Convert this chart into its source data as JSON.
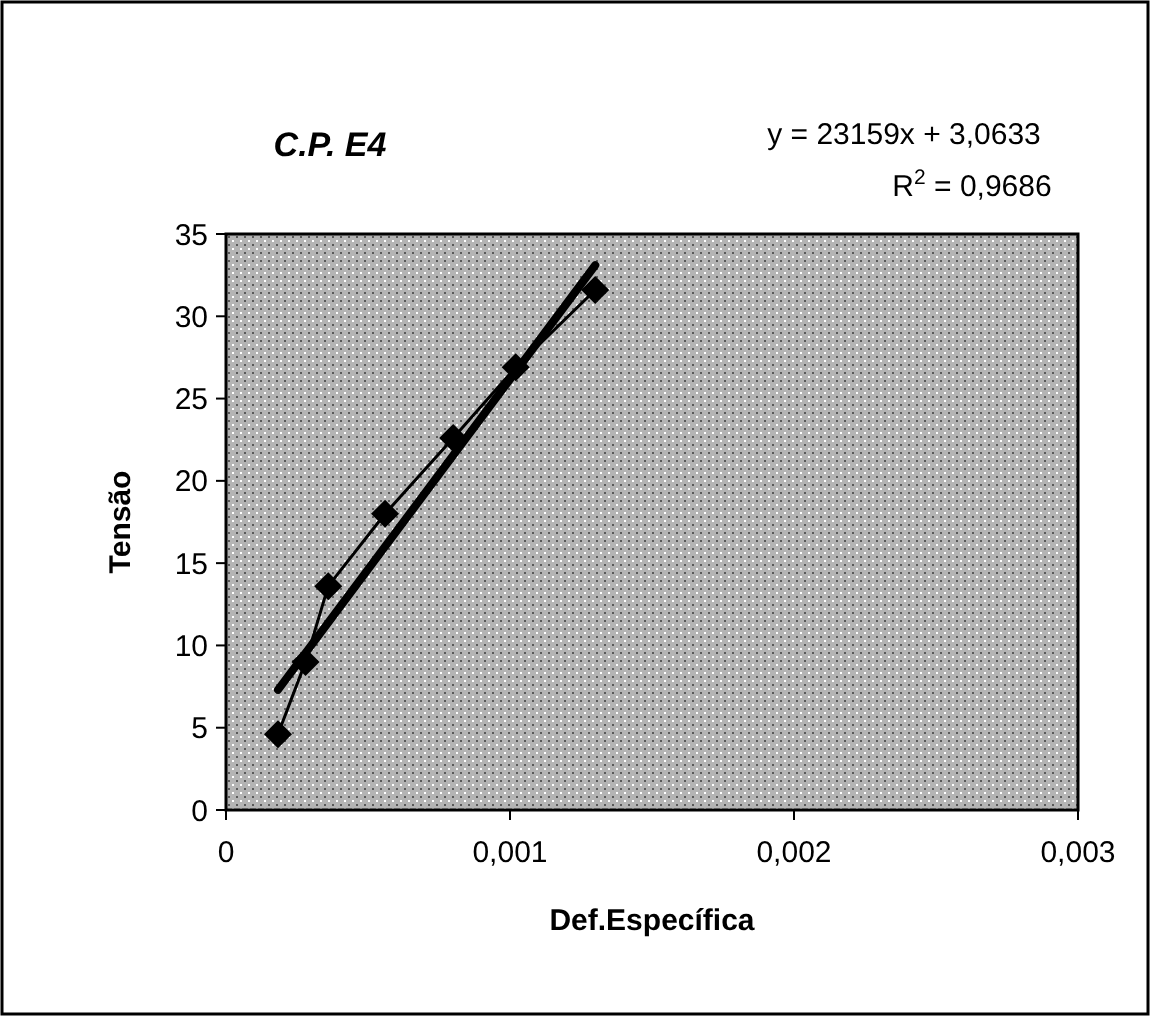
{
  "chart_data": {
    "type": "line",
    "title": "C.P. E4",
    "xlabel": "Def.Específica",
    "ylabel": "Tensão",
    "annotations": [
      "y = 23159x + 3,0633",
      "R$^{2}$ = 0,9686"
    ],
    "series": [
      {
        "color": "#000000",
        "marker": "diamond",
        "x": [
          0.000183,
          0.00028,
          0.00036,
          0.00056,
          0.0008,
          0.00102,
          0.0013
        ],
        "values": [
          4.6,
          9.0,
          13.6,
          18.0,
          22.6,
          26.9,
          31.6
        ]
      },
      {
        "color": "#000000",
        "marker": "none",
        "x": [
          0.000183,
          0.0013
        ],
        "values": [
          7.3,
          33.1
        ]
      }
    ],
    "xlim": [
      0,
      0.003
    ],
    "xticks": [
      0,
      {
        "value": 0.001,
        "label": "0,001"
      },
      {
        "value": 0.002,
        "label": "0,002"
      },
      {
        "value": 0.003,
        "label": "0,003"
      }
    ],
    "ylim": [
      0,
      35
    ],
    "yticks": [
      0,
      5,
      10,
      15,
      20,
      25,
      30,
      35
    ],
    "grid": false
  }
}
